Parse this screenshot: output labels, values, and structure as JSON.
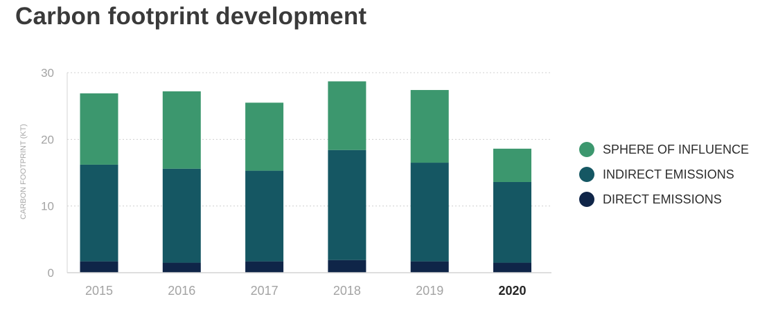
{
  "chart_data": {
    "type": "bar",
    "stacked": true,
    "title": "Carbon footprint development",
    "ylabel": "CARBON FOOTPRINT (KT)",
    "xlabel": "",
    "ylim": [
      0,
      30
    ],
    "yticks": [
      0,
      10,
      20,
      30
    ],
    "grid": "horizontal-dotted",
    "legend_position": "right",
    "categories": [
      "2015",
      "2016",
      "2017",
      "2018",
      "2019",
      "2020"
    ],
    "highlighted_category": "2020",
    "series": [
      {
        "name": "DIRECT EMISSIONS",
        "color": "#0f2548",
        "values": [
          1.7,
          1.5,
          1.7,
          1.9,
          1.7,
          1.5
        ]
      },
      {
        "name": "INDIRECT EMISSIONS",
        "color": "#155763",
        "values": [
          14.5,
          14.1,
          13.6,
          16.5,
          14.8,
          12.1
        ]
      },
      {
        "name": "SPHERE OF INFLUENCE",
        "color": "#3c976e",
        "values": [
          10.7,
          11.6,
          10.2,
          10.3,
          10.9,
          5.0
        ]
      }
    ],
    "legend_order": [
      "SPHERE OF INFLUENCE",
      "INDIRECT EMISSIONS",
      "DIRECT EMISSIONS"
    ]
  }
}
